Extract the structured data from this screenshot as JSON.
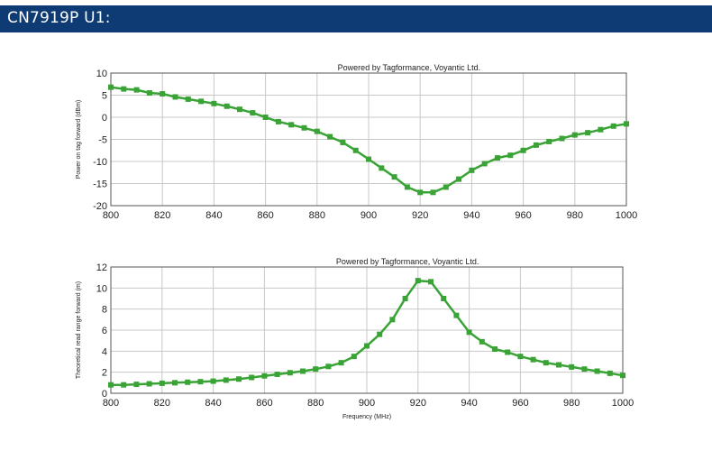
{
  "header": {
    "title": "CN7919P U1:"
  },
  "colors": {
    "header_bg": "#0e3b73",
    "series": "#3aa336",
    "grid": "#c8c8c8",
    "frame": "#555555"
  },
  "chart_data": [
    {
      "type": "line",
      "title": "",
      "annotation": "Powered by Tagformance, Voyantic Ltd.",
      "xlabel": "",
      "ylabel": "Power on tag forward (dBm)",
      "xlim": [
        800,
        1000
      ],
      "ylim": [
        -20,
        10
      ],
      "xticks": [
        "800",
        "820",
        "840",
        "860",
        "880",
        "900",
        "920",
        "940",
        "960",
        "980",
        "1000"
      ],
      "yticks": [
        "10",
        "5",
        "0",
        "-5",
        "-10",
        "-15",
        "-20"
      ],
      "grid": true,
      "x": [
        800,
        805,
        810,
        815,
        820,
        825,
        830,
        835,
        840,
        845,
        850,
        855,
        860,
        865,
        870,
        875,
        880,
        885,
        890,
        895,
        900,
        905,
        910,
        915,
        920,
        925,
        930,
        935,
        940,
        945,
        950,
        955,
        960,
        965,
        970,
        975,
        980,
        985,
        990,
        995,
        1000
      ],
      "values": [
        6.8,
        6.4,
        6.2,
        5.5,
        5.3,
        4.6,
        4.1,
        3.6,
        3.1,
        2.5,
        1.8,
        1.0,
        0.0,
        -1.0,
        -1.7,
        -2.4,
        -3.2,
        -4.4,
        -5.7,
        -7.5,
        -9.5,
        -11.5,
        -13.5,
        -15.8,
        -17.0,
        -17.0,
        -15.8,
        -14.0,
        -12.0,
        -10.5,
        -9.2,
        -8.6,
        -7.5,
        -6.3,
        -5.5,
        -4.8,
        -4.0,
        -3.5,
        -2.8,
        -2.0,
        -1.5
      ]
    },
    {
      "type": "line",
      "title": "",
      "annotation": "Powered by Tagformance, Voyantic Ltd.",
      "xlabel": "Frequency (MHz)",
      "ylabel": "Theoretical read range forward (m)",
      "xlim": [
        800,
        1000
      ],
      "ylim": [
        0,
        12
      ],
      "xticks": [
        "800",
        "820",
        "840",
        "860",
        "880",
        "900",
        "920",
        "940",
        "960",
        "980",
        "1000"
      ],
      "yticks": [
        "12",
        "10",
        "8",
        "6",
        "4",
        "2",
        "0"
      ],
      "grid": true,
      "x": [
        800,
        805,
        810,
        815,
        820,
        825,
        830,
        835,
        840,
        845,
        850,
        855,
        860,
        865,
        870,
        875,
        880,
        885,
        890,
        895,
        900,
        905,
        910,
        915,
        920,
        925,
        930,
        935,
        940,
        945,
        950,
        955,
        960,
        965,
        970,
        975,
        980,
        985,
        990,
        995,
        1000
      ],
      "values": [
        0.8,
        0.8,
        0.85,
        0.9,
        0.95,
        1.0,
        1.05,
        1.1,
        1.15,
        1.25,
        1.35,
        1.5,
        1.65,
        1.8,
        1.95,
        2.1,
        2.3,
        2.55,
        2.9,
        3.5,
        4.5,
        5.6,
        7.0,
        9.0,
        10.7,
        10.6,
        9.0,
        7.4,
        5.8,
        4.9,
        4.2,
        3.9,
        3.5,
        3.2,
        2.9,
        2.7,
        2.5,
        2.3,
        2.1,
        1.9,
        1.7
      ]
    }
  ]
}
